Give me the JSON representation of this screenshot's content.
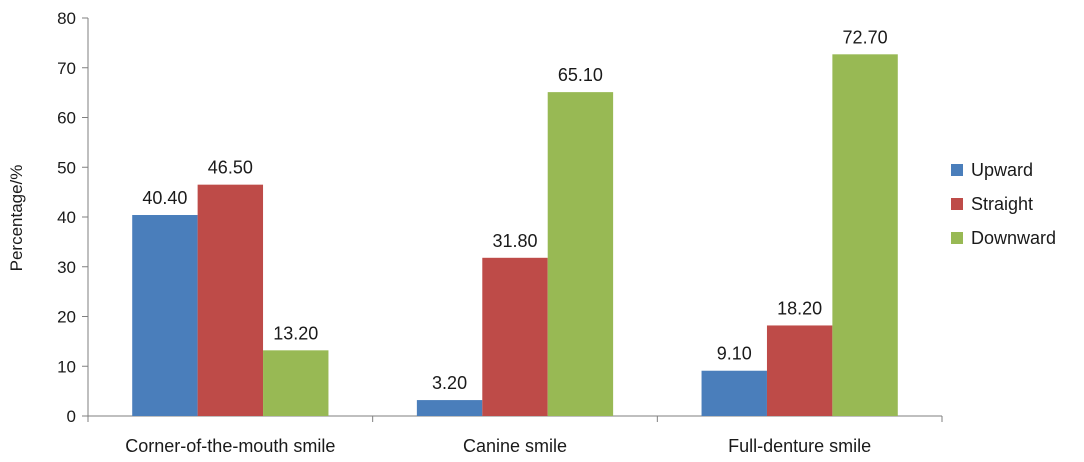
{
  "chart_data": {
    "type": "bar",
    "title": "",
    "xlabel": "",
    "ylabel": "Percentage/%",
    "ylim": [
      0,
      80
    ],
    "yticks": [
      0,
      10,
      20,
      30,
      40,
      50,
      60,
      70,
      80
    ],
    "grid": false,
    "legend_position": "right",
    "categories": [
      "Corner-of-the-mouth smile",
      "Canine smile",
      "Full-denture smile"
    ],
    "series": [
      {
        "name": "Upward",
        "color": "#4a7ebb",
        "values": [
          40.4,
          3.2,
          9.1
        ],
        "labels": [
          "40.40",
          "3.20",
          "9.10"
        ]
      },
      {
        "name": "Straight",
        "color": "#be4b48",
        "values": [
          46.5,
          31.8,
          18.2
        ],
        "labels": [
          "46.50",
          "31.80",
          "18.20"
        ]
      },
      {
        "name": "Downward",
        "color": "#98b954",
        "values": [
          13.2,
          65.1,
          72.7
        ],
        "labels": [
          "13.20",
          "65.10",
          "72.70"
        ]
      }
    ]
  }
}
